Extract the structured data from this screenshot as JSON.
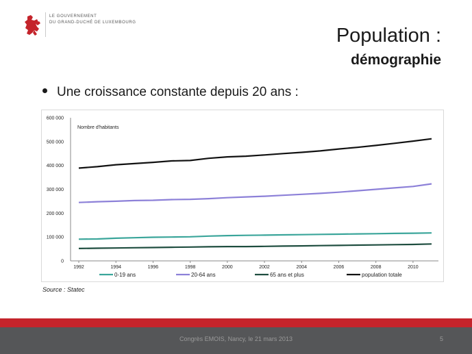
{
  "header": {
    "logo_line1": "LE GOUVERNEMENT",
    "logo_line2": "DU GRAND-DUCHÉ DE LUXEMBOURG",
    "logo_color": "#c4242b",
    "title": "Population :",
    "subtitle": "démographie"
  },
  "bullet": {
    "text": "Une croissance constante depuis 20 ans :"
  },
  "source": "Source : Statec",
  "footer": {
    "text": "Congrès EMOIS, Nancy, le 21 mars 2013",
    "page": "5",
    "band_color": "#c4242b",
    "bg_color": "#555658"
  },
  "chart_data": {
    "type": "line",
    "title": "Nombre d'habitants",
    "xlabel": "",
    "ylabel": "",
    "x": [
      1992,
      1993,
      1994,
      1995,
      1996,
      1997,
      1998,
      1999,
      2000,
      2001,
      2002,
      2003,
      2004,
      2005,
      2006,
      2007,
      2008,
      2009,
      2010,
      2011
    ],
    "x_ticks": [
      "1992",
      "1994",
      "1996",
      "1998",
      "2000",
      "2002",
      "2004",
      "2006",
      "2008",
      "2010"
    ],
    "ylim": [
      0,
      600000
    ],
    "y_ticks": [
      0,
      100000,
      200000,
      300000,
      400000,
      500000,
      600000
    ],
    "y_tick_labels": [
      "0",
      "100 000",
      "200 000",
      "300 000",
      "400 000",
      "500 000",
      "600 000"
    ],
    "grid": false,
    "legend_position": "bottom",
    "series": [
      {
        "name": "0-19 ans",
        "color": "#3aa59a",
        "values": [
          91000,
          92000,
          95000,
          97000,
          99000,
          100000,
          101000,
          104000,
          106000,
          107000,
          108000,
          109000,
          110000,
          111000,
          112000,
          113000,
          114000,
          115000,
          116000,
          117000
        ]
      },
      {
        "name": "20-64 ans",
        "color": "#8c80d8",
        "values": [
          245000,
          248000,
          250000,
          253000,
          254000,
          257000,
          258000,
          261000,
          265000,
          268000,
          271000,
          275000,
          279000,
          283000,
          288000,
          294000,
          300000,
          306000,
          312000,
          323000
        ]
      },
      {
        "name": "65 ans et plus",
        "color": "#1e4d3f",
        "values": [
          52000,
          53000,
          54000,
          55000,
          56000,
          57000,
          58000,
          59000,
          60000,
          60000,
          61000,
          62000,
          63000,
          64000,
          65000,
          66000,
          67000,
          68000,
          69000,
          71000
        ]
      },
      {
        "name": "population totale",
        "color": "#111111",
        "values": [
          389000,
          395000,
          403000,
          408000,
          413000,
          419000,
          421000,
          430000,
          436000,
          439000,
          444000,
          450000,
          455000,
          461000,
          469000,
          476000,
          484000,
          493000,
          502000,
          512000
        ]
      }
    ]
  }
}
